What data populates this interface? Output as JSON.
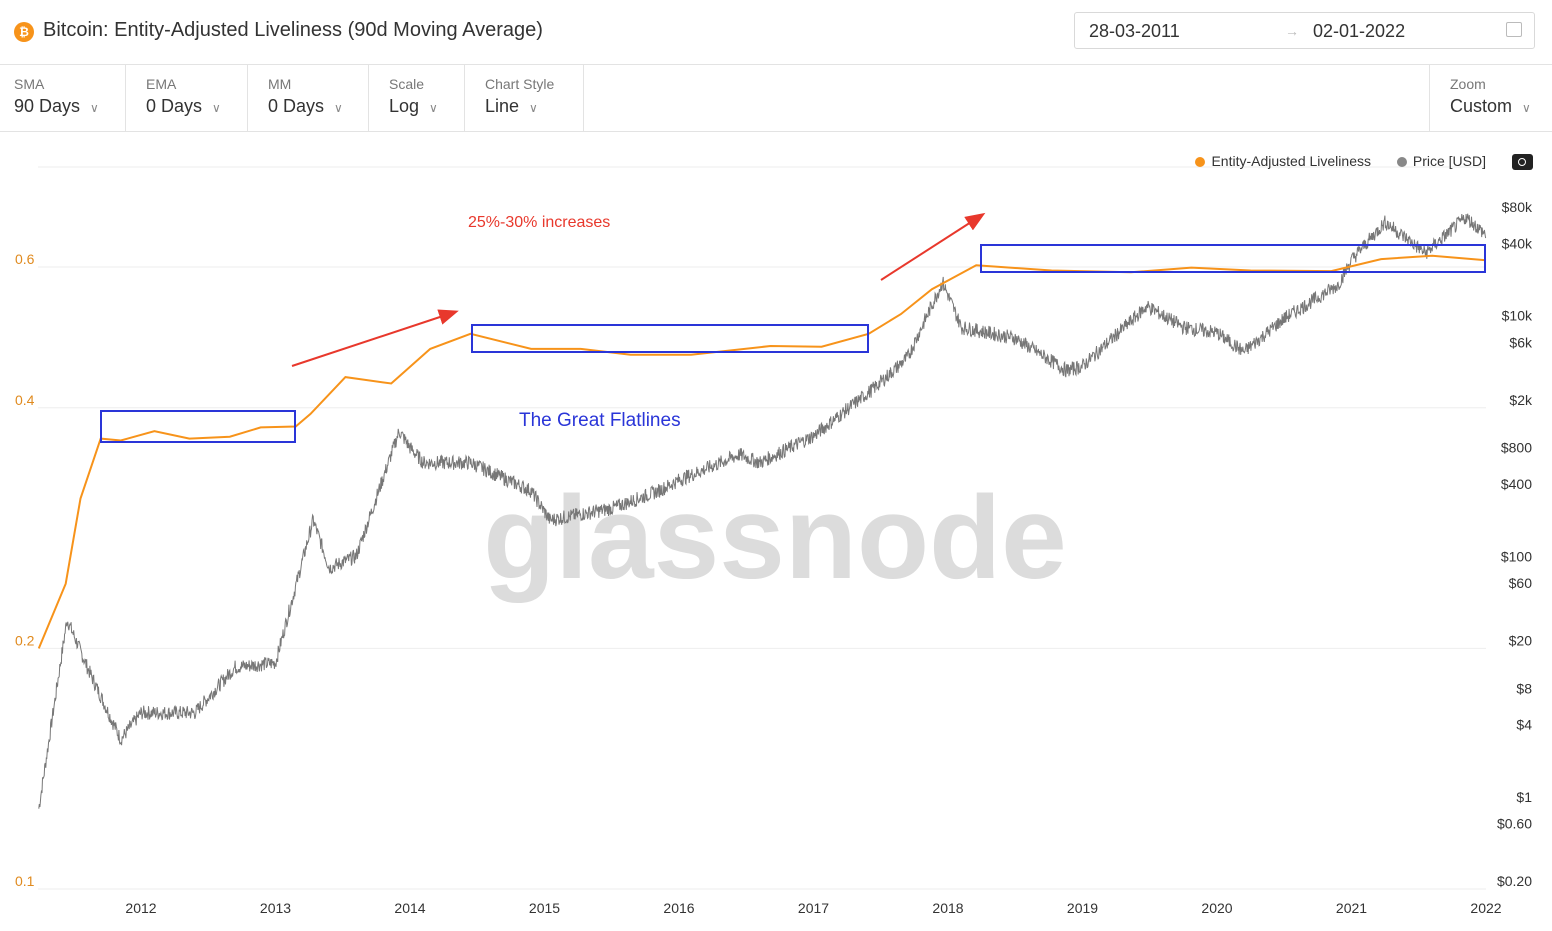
{
  "header": {
    "title": "Bitcoin: Entity-Adjusted Liveliness (90d Moving Average)",
    "coin_icon": "bitcoin-icon",
    "date_from": "28-03-2011",
    "date_to": "02-01-2022",
    "date_separator": "→"
  },
  "toolbar": [
    {
      "label": "SMA",
      "value": "90 Days"
    },
    {
      "label": "EMA",
      "value": "0 Days"
    },
    {
      "label": "MM",
      "value": "0 Days"
    },
    {
      "label": "Scale",
      "value": "Log"
    },
    {
      "label": "Chart Style",
      "value": "Line"
    },
    {
      "label": "Zoom",
      "value": "Custom"
    }
  ],
  "annotations": {
    "increase": "25%-30% increases",
    "flatlines": "The Great Flatlines",
    "watermark": "glassnode",
    "arrow_color": "#e8382c",
    "box_color": "#2a35d8"
  },
  "chart_data": {
    "type": "line",
    "title": "Bitcoin: Entity-Adjusted Liveliness (90d Moving Average)",
    "legend": [
      "Entity-Adjusted Liveliness",
      "Price [USD]"
    ],
    "legend_placement": "top-right",
    "colors": {
      "liveliness": "#f7931a",
      "price": "#777777"
    },
    "x_ticks": [
      "2012",
      "2013",
      "2014",
      "2015",
      "2016",
      "2017",
      "2018",
      "2019",
      "2020",
      "2021",
      "2022"
    ],
    "xlim": [
      "2011-03-28",
      "2022-01-02"
    ],
    "y_left": {
      "scale": "log",
      "ticks": [
        "0.1",
        "0.2",
        "0.4",
        "0.6"
      ],
      "tick_values": [
        0.1,
        0.2,
        0.4,
        0.6
      ],
      "range": [
        0.1,
        0.8
      ]
    },
    "y_right": {
      "scale": "log",
      "ticks": [
        "$80k",
        "$40k",
        "$10k",
        "$6k",
        "$2k",
        "$800",
        "$400",
        "$100",
        "$60",
        "$20",
        "$8",
        "$4",
        "$1",
        "$0.60",
        "$0.20"
      ],
      "tick_values": [
        80000,
        40000,
        10000,
        6000,
        2000,
        800,
        400,
        100,
        60,
        20,
        8,
        4,
        1,
        0.6,
        0.2
      ]
    },
    "grid": true,
    "series": [
      {
        "name": "Entity-Adjusted Liveliness",
        "x": [
          2011.24,
          2011.44,
          2011.55,
          2011.7,
          2011.85,
          2012.1,
          2012.36,
          2012.66,
          2012.89,
          2013.15,
          2013.26,
          2013.52,
          2013.86,
          2014.15,
          2014.45,
          2014.9,
          2015.27,
          2015.64,
          2016.09,
          2016.68,
          2017.06,
          2017.41,
          2017.65,
          2017.88,
          2018.21,
          2018.77,
          2019.36,
          2019.81,
          2020.25,
          2020.85,
          2021.22,
          2021.6,
          2022.0
        ],
        "values": [
          0.2,
          0.241,
          0.308,
          0.366,
          0.364,
          0.374,
          0.366,
          0.368,
          0.378,
          0.379,
          0.393,
          0.437,
          0.429,
          0.474,
          0.495,
          0.474,
          0.474,
          0.466,
          0.466,
          0.478,
          0.477,
          0.495,
          0.524,
          0.563,
          0.603,
          0.594,
          0.591,
          0.599,
          0.594,
          0.593,
          0.614,
          0.62,
          0.612
        ]
      },
      {
        "name": "Price [USD]",
        "x": [
          2011.24,
          2011.45,
          2011.6,
          2011.85,
          2012.0,
          2012.4,
          2012.7,
          2013.0,
          2013.28,
          2013.4,
          2013.6,
          2013.92,
          2014.0,
          2014.1,
          2014.45,
          2014.9,
          2015.04,
          2015.5,
          2015.85,
          2016.0,
          2016.45,
          2016.6,
          2017.0,
          2017.45,
          2017.7,
          2017.96,
          2018.1,
          2018.5,
          2018.88,
          2019.0,
          2019.48,
          2019.75,
          2020.0,
          2020.2,
          2020.5,
          2020.9,
          2021.0,
          2021.25,
          2021.55,
          2021.85,
          2022.0
        ],
        "values": [
          0.8,
          30,
          12,
          3,
          5,
          5,
          12,
          13,
          200,
          80,
          100,
          1100,
          800,
          600,
          600,
          350,
          200,
          250,
          350,
          430,
          700,
          600,
          1000,
          2500,
          4500,
          19000,
          8000,
          6500,
          3500,
          3800,
          12000,
          8000,
          7200,
          5000,
          9500,
          18000,
          29000,
          60000,
          33000,
          66000,
          47000
        ]
      }
    ]
  }
}
